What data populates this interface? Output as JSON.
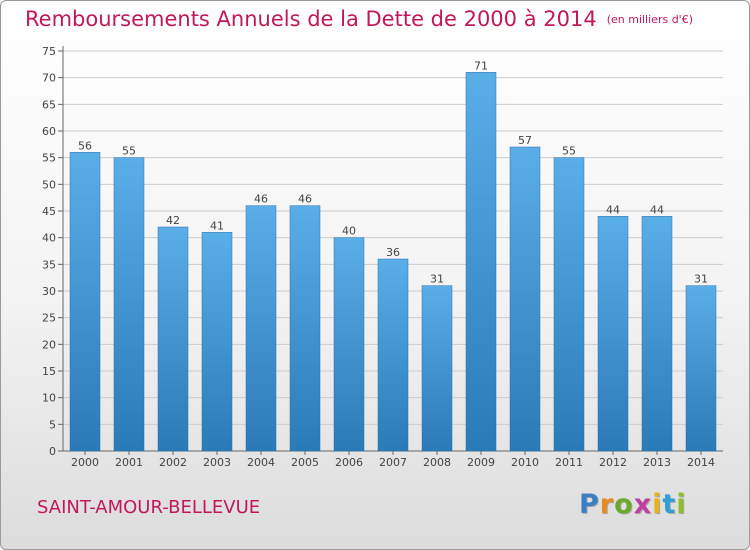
{
  "chart_data": {
    "type": "bar",
    "title": "Remboursements Annuels de la Dette de 2000 à 2014",
    "subtitle": "(en milliers d'€)",
    "xlabel": "",
    "ylabel": "",
    "categories": [
      "2000",
      "2001",
      "2002",
      "2003",
      "2004",
      "2005",
      "2006",
      "2007",
      "2008",
      "2009",
      "2010",
      "2011",
      "2012",
      "2013",
      "2014"
    ],
    "values": [
      56,
      55,
      42,
      41,
      46,
      46,
      40,
      36,
      31,
      71,
      57,
      55,
      44,
      44,
      31
    ],
    "ylim": [
      0,
      75
    ],
    "yticks": [
      0,
      5,
      10,
      15,
      20,
      25,
      30,
      35,
      40,
      45,
      50,
      55,
      60,
      65,
      70,
      75
    ],
    "grid": true,
    "colors": {
      "bar_top": "#5aaee8",
      "bar_bottom": "#2a7ab8",
      "title": "#c2185b",
      "grid": "#cccccc"
    }
  },
  "footer": {
    "city": "SAINT-AMOUR-BELLEVUE",
    "brand_letters": [
      {
        "char": "P",
        "color": "#3a7fc4"
      },
      {
        "char": "r",
        "color": "#e98a1c"
      },
      {
        "char": "o",
        "color": "#6aaa2a"
      },
      {
        "char": "x",
        "color": "#c03fa0"
      },
      {
        "char": "i",
        "color": "#e8b21a"
      },
      {
        "char": "t",
        "color": "#2f9fd8"
      },
      {
        "char": "i",
        "color": "#8cbf2a"
      }
    ]
  }
}
